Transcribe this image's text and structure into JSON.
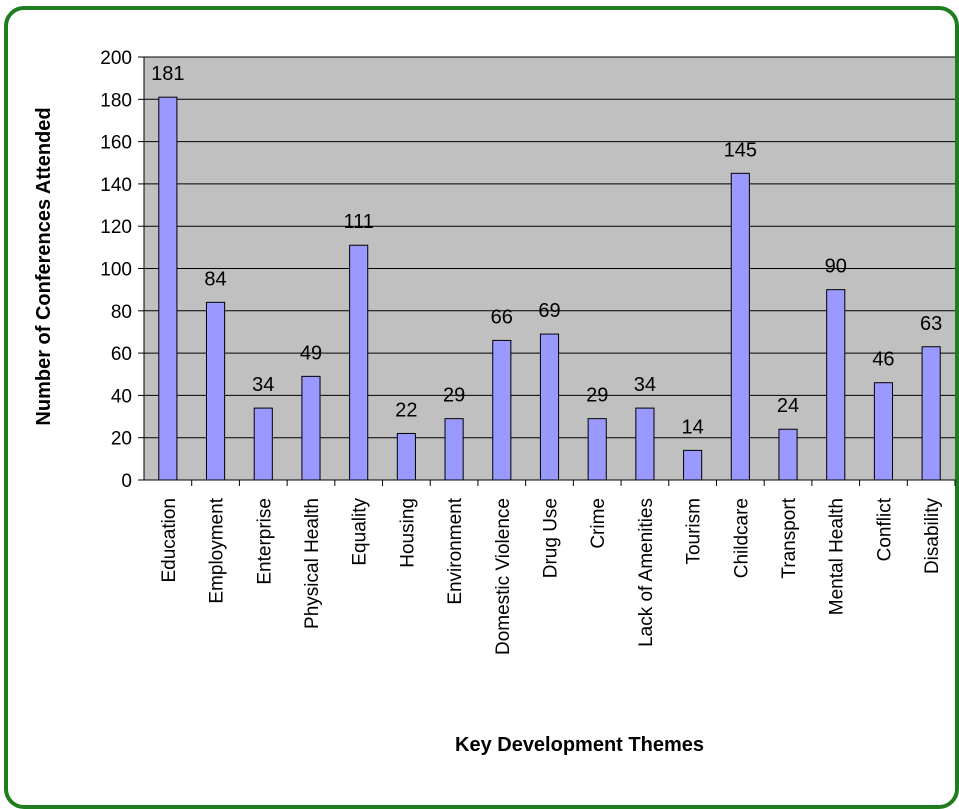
{
  "chart_data": {
    "type": "bar",
    "xlabel": "Key Development Themes",
    "ylabel": "Number of Conferences Attended",
    "ylim": [
      0,
      200
    ],
    "ytick_step": 20,
    "grid": true,
    "legend": "none",
    "categories": [
      "Education",
      "Employment",
      "Enterprise",
      "Physical Health",
      "Equality",
      "Housing",
      "Environment",
      "Domestic Violence",
      "Drug Use",
      "Crime",
      "Lack of Amenities",
      "Tourism",
      "Childcare",
      "Transport",
      "Mental Health",
      "Conflict",
      "Disability"
    ],
    "values": [
      181,
      84,
      34,
      49,
      111,
      22,
      29,
      66,
      69,
      29,
      34,
      14,
      145,
      24,
      90,
      46,
      63
    ],
    "colors": {
      "bar_fill": "#9999ff",
      "bar_stroke": "#000000",
      "plot_background": "#c0c0c0",
      "gridline": "#000000",
      "frame_border": "#1e7d1e"
    }
  }
}
